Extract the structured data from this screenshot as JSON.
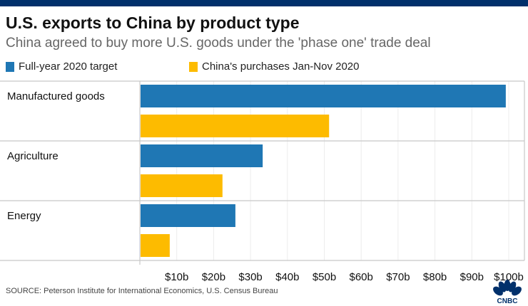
{
  "header": {
    "title": "U.S. exports to China by product type",
    "subtitle": "China agreed to buy more U.S. goods under the 'phase one' trade deal"
  },
  "footer": {
    "source": "SOURCE: Peterson Institute for International Economics, U.S. Census Bureau",
    "logo": "CNBC"
  },
  "colors": {
    "target": "#1f77b4",
    "purchases": "#fdbb00",
    "topbar": "#00306b"
  },
  "chart_data": {
    "type": "bar",
    "orientation": "horizontal",
    "title": "U.S. exports to China by product type",
    "subtitle": "China agreed to buy more U.S. goods under the 'phase one' trade deal",
    "categories": [
      "Manufactured goods",
      "Agriculture",
      "Energy"
    ],
    "series": [
      {
        "name": "Full-year 2020 target",
        "values": [
          99.2,
          33.3,
          25.9
        ]
      },
      {
        "name": "China's purchases Jan-Nov 2020",
        "values": [
          51.3,
          22.4,
          8.1
        ]
      }
    ],
    "xlim": [
      0,
      104
    ],
    "xticks": [
      10,
      20,
      30,
      40,
      50,
      60,
      70,
      80,
      90,
      100
    ],
    "xtick_labels": [
      "$10b",
      "$20b",
      "$30b",
      "$40b",
      "$50b",
      "$60b",
      "$70b",
      "$80b",
      "$90b",
      "$100b"
    ],
    "xlabel": "",
    "ylabel": "",
    "grid": true,
    "legend": "top-left"
  }
}
